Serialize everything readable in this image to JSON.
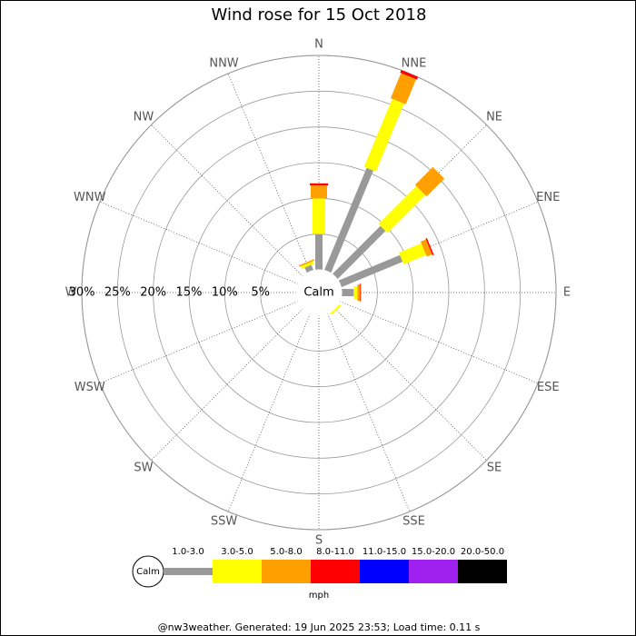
{
  "chart_data": {
    "type": "windrose",
    "title": "Wind rose for 15 Oct 2018",
    "categories": [
      "N",
      "NNE",
      "NE",
      "ENE",
      "E",
      "ESE",
      "SE",
      "SSE",
      "S",
      "SSW",
      "SW",
      "WSW",
      "W",
      "WNW",
      "NW",
      "NNW"
    ],
    "calm_label": "Calm",
    "rlim": [
      0,
      30
    ],
    "rticks": [
      {
        "value": 5,
        "label": "5%"
      },
      {
        "value": 10,
        "label": "10%"
      },
      {
        "value": 15,
        "label": "15%"
      },
      {
        "value": 20,
        "label": "20%"
      },
      {
        "value": 25,
        "label": "25%"
      },
      {
        "value": 30,
        "label": "30%"
      }
    ],
    "unit_label": "mph",
    "series": [
      {
        "name": "1.0-3.0",
        "color": "#999999",
        "values": [
          5,
          15.5,
          9.5,
          9.3,
          1.7,
          0,
          0,
          0,
          0,
          0,
          0,
          0,
          0,
          0,
          0,
          0.8
        ]
      },
      {
        "name": "3.0-5.0",
        "color": "#ffff00",
        "values": [
          5,
          10.3,
          7.5,
          3.4,
          0.5,
          0,
          0.3,
          0,
          0,
          0,
          0,
          0,
          0,
          0,
          0,
          0.4
        ]
      },
      {
        "name": "5.0-8.0",
        "color": "#ffa000",
        "values": [
          1.8,
          3.8,
          3.5,
          0.8,
          0.4,
          0,
          0,
          0,
          0,
          0,
          0,
          0,
          0,
          0,
          0,
          0.2
        ]
      },
      {
        "name": "8.0-11.0",
        "color": "#ff0000",
        "values": [
          0.3,
          0.4,
          0,
          0.2,
          0.1,
          0,
          0,
          0,
          0,
          0,
          0,
          0,
          0,
          0,
          0,
          0
        ]
      },
      {
        "name": "11.0-15.0",
        "color": "#0000ff",
        "values": [
          0,
          0,
          0,
          0,
          0,
          0,
          0,
          0,
          0,
          0,
          0,
          0,
          0,
          0,
          0,
          0
        ]
      },
      {
        "name": "15.0-20.0",
        "color": "#a020f0",
        "values": [
          0,
          0,
          0,
          0,
          0,
          0,
          0,
          0,
          0,
          0,
          0,
          0,
          0,
          0,
          0,
          0
        ]
      },
      {
        "name": "20.0-50.0",
        "color": "#000000",
        "values": [
          0,
          0,
          0,
          0,
          0,
          0,
          0,
          0,
          0,
          0,
          0,
          0,
          0,
          0,
          0,
          0
        ]
      }
    ],
    "footer": "@nw3weather.  Generated: 19 Jun 2025 23:53; Load time: 0.11 s"
  }
}
